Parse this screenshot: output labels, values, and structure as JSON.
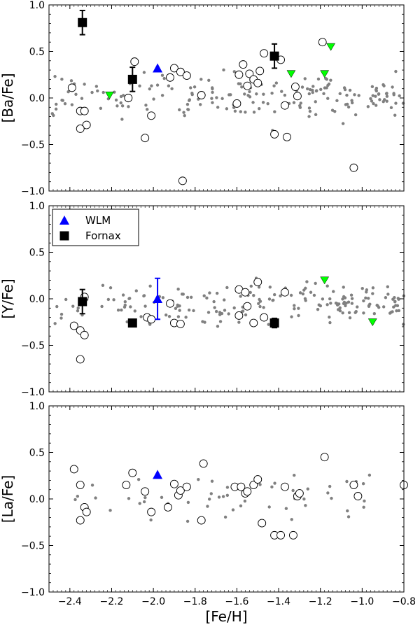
{
  "chart_data": {
    "type": "scatter",
    "xlabel": "[Fe/H]",
    "xlim": [
      -2.5,
      -0.8
    ],
    "xticks": [
      -2.4,
      -2.2,
      -2.0,
      -1.8,
      -1.6,
      -1.4,
      -1.2,
      -1.0,
      -0.8
    ],
    "xtick_labels": [
      "−2.4",
      "−2.2",
      "−2.0",
      "−1.8",
      "−1.6",
      "−1.4",
      "−1.2",
      "−1.0",
      "−0.8"
    ],
    "legend": {
      "placement": "top-left of middle panel",
      "entries": [
        {
          "label": "WLM",
          "marker": "triangle",
          "color": "#0000ff"
        },
        {
          "label": "Fornax",
          "marker": "square",
          "color": "#000000"
        }
      ]
    },
    "colors": {
      "background_stars": "#808080",
      "wlm": "#0000ff",
      "fornax": "#000000",
      "green_triangles": "#00ff00",
      "open_circles": "#000000"
    },
    "panels": [
      {
        "ylabel": "[Ba/Fe]",
        "ylim": [
          -1.0,
          1.0
        ],
        "yticks": [
          -1.0,
          -0.5,
          0.0,
          0.5,
          1.0
        ],
        "ytick_labels": [
          "−1.0",
          "−0.5",
          "0.0",
          "0.5",
          "1.0"
        ],
        "fornax": [
          {
            "x": -2.34,
            "y": 0.81,
            "err": 0.13
          },
          {
            "x": -2.1,
            "y": 0.2,
            "err": 0.13
          },
          {
            "x": -1.42,
            "y": 0.45,
            "err": 0.13
          }
        ],
        "wlm": [
          {
            "x": -1.98,
            "y": 0.32,
            "err": 0.0
          }
        ],
        "green_triangles": [
          {
            "x": -2.21,
            "y": 0.03
          },
          {
            "x": -1.34,
            "y": 0.26
          },
          {
            "x": -1.18,
            "y": 0.26
          },
          {
            "x": -1.15,
            "y": 0.55
          }
        ],
        "open_circles": [
          {
            "x": -2.39,
            "y": 0.11
          },
          {
            "x": -2.35,
            "y": -0.14
          },
          {
            "x": -2.33,
            "y": -0.14
          },
          {
            "x": -2.32,
            "y": -0.29
          },
          {
            "x": -2.35,
            "y": -0.33
          },
          {
            "x": -2.12,
            "y": 0.0
          },
          {
            "x": -2.09,
            "y": 0.39
          },
          {
            "x": -2.04,
            "y": -0.43
          },
          {
            "x": -2.01,
            "y": -0.19
          },
          {
            "x": -1.92,
            "y": 0.22
          },
          {
            "x": -1.9,
            "y": 0.32
          },
          {
            "x": -1.87,
            "y": 0.28
          },
          {
            "x": -1.86,
            "y": -0.89
          },
          {
            "x": -1.84,
            "y": 0.24
          },
          {
            "x": -1.77,
            "y": 0.03
          },
          {
            "x": -1.6,
            "y": -0.06
          },
          {
            "x": -1.59,
            "y": 0.25
          },
          {
            "x": -1.57,
            "y": 0.36
          },
          {
            "x": -1.55,
            "y": 0.13
          },
          {
            "x": -1.54,
            "y": 0.26
          },
          {
            "x": -1.52,
            "y": 0.2
          },
          {
            "x": -1.5,
            "y": 0.16
          },
          {
            "x": -1.49,
            "y": 0.29
          },
          {
            "x": -1.47,
            "y": 0.48
          },
          {
            "x": -1.42,
            "y": -0.39
          },
          {
            "x": -1.39,
            "y": 0.41
          },
          {
            "x": -1.37,
            "y": -0.08
          },
          {
            "x": -1.36,
            "y": -0.42
          },
          {
            "x": -1.32,
            "y": 0.12
          },
          {
            "x": -1.31,
            "y": 0.02
          },
          {
            "x": -1.19,
            "y": 0.6
          },
          {
            "x": -1.04,
            "y": -0.75
          }
        ]
      },
      {
        "ylabel": "[Y/Fe]",
        "ylim": [
          -1.0,
          1.0
        ],
        "yticks": [
          -1.0,
          -0.5,
          0.0,
          0.5,
          1.0
        ],
        "ytick_labels": [
          "−1.0",
          "−0.5",
          "0.0",
          "0.5",
          "1.0"
        ],
        "fornax": [
          {
            "x": -2.34,
            "y": -0.03,
            "err": 0.13
          },
          {
            "x": -2.1,
            "y": -0.26,
            "err": 0.0
          },
          {
            "x": -1.42,
            "y": -0.26,
            "err": 0.05
          }
        ],
        "wlm": [
          {
            "x": -1.98,
            "y": 0.0,
            "err": 0.22
          }
        ],
        "green_triangles": [
          {
            "x": -1.18,
            "y": 0.2
          },
          {
            "x": -0.95,
            "y": -0.25
          }
        ],
        "open_circles": [
          {
            "x": -2.38,
            "y": -0.29
          },
          {
            "x": -2.35,
            "y": -0.34
          },
          {
            "x": -2.35,
            "y": -0.65
          },
          {
            "x": -2.33,
            "y": -0.39
          },
          {
            "x": -2.33,
            "y": 0.02
          },
          {
            "x": -2.03,
            "y": -0.2
          },
          {
            "x": -2.01,
            "y": -0.22
          },
          {
            "x": -1.92,
            "y": -0.05
          },
          {
            "x": -1.9,
            "y": -0.26
          },
          {
            "x": -1.87,
            "y": -0.27
          },
          {
            "x": -1.59,
            "y": 0.1
          },
          {
            "x": -1.59,
            "y": -0.18
          },
          {
            "x": -1.56,
            "y": 0.07
          },
          {
            "x": -1.55,
            "y": -0.08
          },
          {
            "x": -1.52,
            "y": -0.26
          },
          {
            "x": -1.5,
            "y": 0.18
          },
          {
            "x": -1.47,
            "y": -0.2
          },
          {
            "x": -1.37,
            "y": 0.07
          }
        ]
      },
      {
        "ylabel": "[La/Fe]",
        "ylim": [
          -1.0,
          1.0
        ],
        "yticks": [
          -1.0,
          -0.5,
          0.0,
          0.5,
          1.0
        ],
        "ytick_labels": [
          "−1.0",
          "−0.5",
          "0.0",
          "0.5",
          "1.0"
        ],
        "fornax": [],
        "wlm": [
          {
            "x": -1.98,
            "y": 0.26,
            "err": 0.0
          }
        ],
        "green_triangles": [],
        "open_circles": [
          {
            "x": -2.38,
            "y": 0.32
          },
          {
            "x": -2.35,
            "y": 0.15
          },
          {
            "x": -2.33,
            "y": -0.09
          },
          {
            "x": -2.32,
            "y": -0.14
          },
          {
            "x": -2.35,
            "y": -0.23
          },
          {
            "x": -2.13,
            "y": 0.15
          },
          {
            "x": -2.1,
            "y": 0.28
          },
          {
            "x": -2.04,
            "y": 0.08
          },
          {
            "x": -2.01,
            "y": -0.14
          },
          {
            "x": -1.93,
            "y": -0.09
          },
          {
            "x": -1.9,
            "y": 0.16
          },
          {
            "x": -1.88,
            "y": 0.04
          },
          {
            "x": -1.87,
            "y": 0.09
          },
          {
            "x": -1.84,
            "y": 0.13
          },
          {
            "x": -1.77,
            "y": -0.23
          },
          {
            "x": -1.76,
            "y": 0.38
          },
          {
            "x": -1.61,
            "y": 0.13
          },
          {
            "x": -1.58,
            "y": 0.13
          },
          {
            "x": -1.56,
            "y": 0.06
          },
          {
            "x": -1.55,
            "y": 0.08
          },
          {
            "x": -1.52,
            "y": 0.15
          },
          {
            "x": -1.5,
            "y": 0.21
          },
          {
            "x": -1.48,
            "y": -0.26
          },
          {
            "x": -1.42,
            "y": -0.39
          },
          {
            "x": -1.39,
            "y": -0.39
          },
          {
            "x": -1.37,
            "y": 0.13
          },
          {
            "x": -1.33,
            "y": -0.39
          },
          {
            "x": -1.31,
            "y": 0.03
          },
          {
            "x": -1.3,
            "y": 0.06
          },
          {
            "x": -1.18,
            "y": 0.45
          },
          {
            "x": -1.04,
            "y": 0.15
          },
          {
            "x": -1.02,
            "y": 0.03
          },
          {
            "x": -0.8,
            "y": 0.15
          }
        ]
      }
    ]
  }
}
